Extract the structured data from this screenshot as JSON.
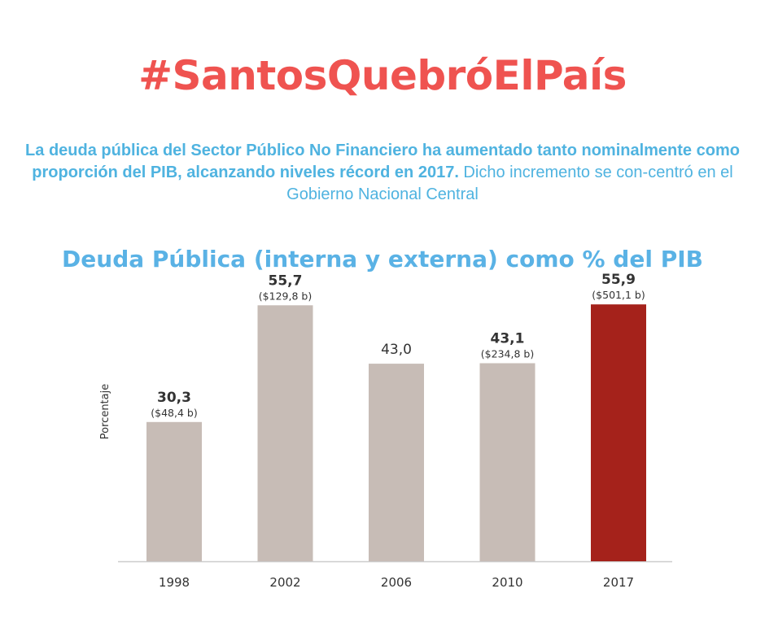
{
  "hashtag": "#SantosQuebróElPaís",
  "intro": {
    "bold_text": "La deuda pública del Sector Público No Financiero ha aumentado tanto nominalmente como proporción del PIB, alcanzando niveles récord en 2017.",
    "regular_text": " Dicho incremento se con-centró en el Gobierno Nacional Central"
  },
  "colors": {
    "hashtag": "#ef5350",
    "intro": "#4fb3e0",
    "chart_title": "#5ab2e5",
    "bar_default": "#c7bcb6",
    "bar_highlight": "#a5221b",
    "axis_line": "#cccccc"
  },
  "chart_data": {
    "type": "bar",
    "title": "Deuda Pública (interna y externa) como % del PIB",
    "ylabel": "Porcentaje",
    "xlabel": "",
    "ylim": [
      0,
      57
    ],
    "grid": false,
    "categories": [
      "1998",
      "2002",
      "2006",
      "2010",
      "2017"
    ],
    "values": [
      30.3,
      55.7,
      43.0,
      43.1,
      55.9
    ],
    "value_labels": [
      "30,3",
      "55,7",
      "43,0",
      "43,1",
      "55,9"
    ],
    "sub_labels": [
      "($48,4 b)",
      "($129,8 b)",
      "",
      "($234,8 b)",
      "($501,1 b)"
    ],
    "highlight": [
      false,
      false,
      false,
      false,
      true
    ],
    "bold_value": [
      true,
      true,
      false,
      true,
      true
    ]
  }
}
